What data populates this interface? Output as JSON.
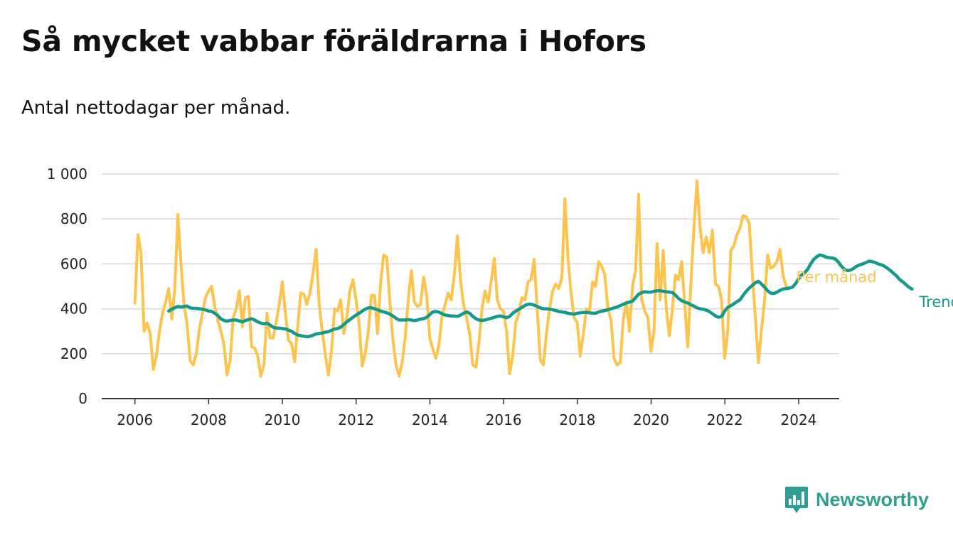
{
  "chart_data": {
    "type": "line",
    "title": "Så mycket vabbar föräldrarna i Hofors",
    "subtitle": "Antal nettodagar per månad.",
    "xlabel": "",
    "ylabel": "",
    "xlim": [
      2005.1,
      2025.1
    ],
    "ylim": [
      0,
      1000
    ],
    "x_ticks": [
      2006,
      2008,
      2010,
      2012,
      2014,
      2016,
      2018,
      2020,
      2022,
      2024
    ],
    "x_tick_labels": [
      "2006",
      "2008",
      "2010",
      "2012",
      "2014",
      "2016",
      "2018",
      "2020",
      "2022",
      "2024"
    ],
    "y_ticks": [
      0,
      200,
      400,
      600,
      800,
      1000
    ],
    "y_tick_labels": [
      "0",
      "200",
      "400",
      "600",
      "800",
      "1 000"
    ],
    "grid": true,
    "legend": "right, labels at line ends",
    "series": [
      {
        "name": "Per månad",
        "color": "#fcc44c",
        "x_start": 2006.0,
        "x_step": 0.0833,
        "values": [
          425,
          730,
          650,
          300,
          335,
          290,
          130,
          190,
          300,
          380,
          430,
          490,
          355,
          490,
          820,
          600,
          420,
          330,
          170,
          150,
          200,
          310,
          380,
          450,
          480,
          500,
          410,
          350,
          300,
          240,
          105,
          170,
          360,
          400,
          480,
          320,
          450,
          455,
          230,
          225,
          190,
          100,
          150,
          380,
          270,
          270,
          340,
          420,
          520,
          380,
          260,
          245,
          165,
          320,
          470,
          465,
          420,
          470,
          560,
          665,
          420,
          300,
          195,
          105,
          210,
          400,
          390,
          440,
          290,
          360,
          480,
          530,
          440,
          330,
          145,
          200,
          300,
          460,
          460,
          290,
          520,
          640,
          630,
          430,
          260,
          150,
          100,
          160,
          270,
          440,
          570,
          430,
          410,
          420,
          540,
          460,
          270,
          220,
          180,
          240,
          370,
          420,
          470,
          440,
          555,
          725,
          525,
          420,
          360,
          290,
          150,
          140,
          250,
          400,
          480,
          430,
          520,
          625,
          440,
          400,
          390,
          300,
          110,
          190,
          340,
          380,
          450,
          440,
          520,
          530,
          620,
          390,
          170,
          150,
          290,
          400,
          480,
          510,
          490,
          540,
          890,
          620,
          470,
          360,
          340,
          190,
          290,
          400,
          390,
          520,
          500,
          610,
          590,
          550,
          400,
          350,
          180,
          150,
          160,
          350,
          430,
          300,
          500,
          570,
          910,
          440,
          390,
          360,
          210,
          300,
          690,
          440,
          660,
          400,
          280,
          400,
          550,
          530,
          610,
          420,
          230,
          510,
          760,
          970,
          760,
          650,
          720,
          650,
          750,
          510,
          500,
          440,
          180,
          300,
          660,
          680,
          730,
          760,
          815,
          810,
          780,
          560,
          360,
          160,
          310,
          440,
          640,
          580,
          590,
          610,
          665,
          550,
          500,
          490
        ]
      },
      {
        "name": "Trend",
        "color": "#14998a",
        "x_start": 2006.9167,
        "x_step": 0.0833,
        "values": [
          390,
          398,
          405,
          410,
          408,
          410,
          412,
          404,
          402,
          402,
          400,
          398,
          395,
          390,
          388,
          380,
          370,
          355,
          348,
          345,
          348,
          350,
          350,
          346,
          342,
          348,
          352,
          356,
          350,
          342,
          336,
          333,
          336,
          328,
          318,
          314,
          314,
          312,
          310,
          305,
          300,
          290,
          283,
          280,
          278,
          275,
          278,
          282,
          288,
          290,
          292,
          296,
          298,
          304,
          310,
          312,
          318,
          330,
          342,
          352,
          362,
          372,
          380,
          390,
          398,
          404,
          404,
          400,
          396,
          390,
          386,
          382,
          376,
          368,
          358,
          350,
          350,
          350,
          352,
          350,
          347,
          350,
          354,
          356,
          362,
          374,
          386,
          388,
          385,
          378,
          372,
          370,
          368,
          368,
          366,
          372,
          380,
          386,
          380,
          366,
          356,
          350,
          348,
          350,
          354,
          358,
          362,
          366,
          368,
          364,
          360,
          366,
          380,
          390,
          398,
          406,
          415,
          420,
          420,
          416,
          410,
          404,
          400,
          400,
          398,
          396,
          392,
          388,
          386,
          384,
          380,
          378,
          376,
          380,
          382,
          384,
          384,
          382,
          380,
          380,
          386,
          390,
          392,
          396,
          400,
          404,
          408,
          414,
          420,
          426,
          430,
          434,
          450,
          465,
          472,
          476,
          474,
          474,
          478,
          480,
          480,
          478,
          476,
          474,
          472,
          460,
          446,
          436,
          430,
          426,
          418,
          412,
          404,
          400,
          398,
          394,
          388,
          378,
          368,
          362,
          366,
          390,
          406,
          414,
          422,
          432,
          440,
          460,
          478,
          492,
          504,
          516,
          522,
          510,
          496,
          480,
          470,
          468,
          474,
          482,
          488,
          490,
          492,
          496,
          510,
          532,
          550,
          560,
          576,
          600,
          620,
          632,
          640,
          636,
          630,
          628,
          626,
          622,
          608,
          590,
          575,
          570,
          572,
          580,
          590,
          596,
          600,
          606,
          612,
          610,
          606,
          600,
          596,
          590,
          580,
          570,
          558,
          546,
          530,
          520,
          508,
          496,
          488
        ]
      }
    ]
  },
  "brand": {
    "name": "Newsworthy",
    "logo_icon": "bar-chart-speech-bubble-icon",
    "color": "#2f9e93"
  }
}
